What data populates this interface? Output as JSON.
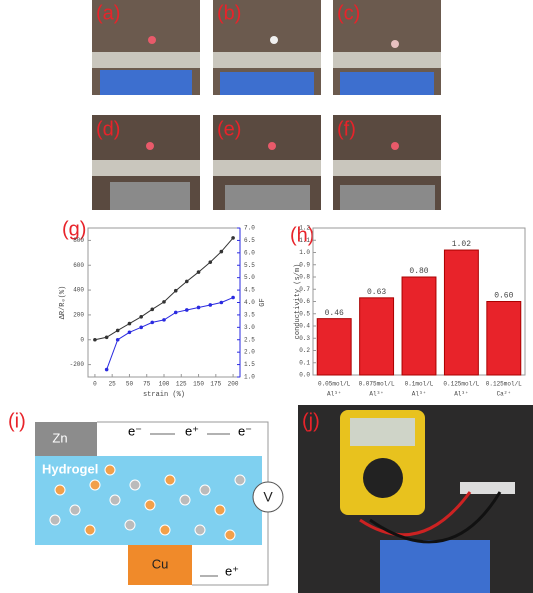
{
  "panels": {
    "labels": [
      "(a)",
      "(b)",
      "(c)",
      "(d)",
      "(e)",
      "(f)",
      "(g)",
      "(h)",
      "(i)",
      "(j)"
    ]
  },
  "chart_data": [
    {
      "type": "line",
      "x_label": "strain (%)",
      "y_label": "ΔR/R₀(%)",
      "y2_label": "GF",
      "x": [
        0,
        17,
        33,
        50,
        67,
        83,
        100,
        117,
        133,
        150,
        167,
        183,
        200
      ],
      "series": [
        {
          "color": "#333333",
          "values": [
            0,
            20,
            75,
            130,
            185,
            245,
            305,
            395,
            470,
            545,
            625,
            710,
            820
          ]
        },
        {
          "color": "#2a2ae0",
          "axis": "y2",
          "values": [
            null,
            1.3,
            2.5,
            2.8,
            3.0,
            3.2,
            3.3,
            3.6,
            3.7,
            3.8,
            3.9,
            4.0,
            4.2
          ]
        }
      ],
      "xlim": [
        -10,
        210
      ],
      "xticks": [
        0,
        25,
        50,
        75,
        100,
        125,
        150,
        175,
        200
      ],
      "ylim": [
        -300,
        900
      ],
      "yticks": [
        -200,
        0,
        200,
        400,
        600,
        800
      ],
      "y2lim": [
        1.0,
        7.0
      ],
      "y2ticks": [
        {
          "value": 1.0,
          "label": "1.0"
        },
        1.5,
        {
          "value": 2.0,
          "label": "2.0"
        },
        2.5,
        {
          "value": 3.0,
          "label": "3.0"
        },
        3.5,
        {
          "value": 4.0,
          "label": "4.0"
        },
        4.5,
        {
          "value": 5.0,
          "label": "5.0"
        },
        5.5,
        {
          "value": 6.0,
          "label": "6.0"
        },
        6.5,
        {
          "value": 7.0,
          "label": "7.0"
        }
      ]
    },
    {
      "type": "bar",
      "y_label": "conductivity (s/m)",
      "categories": [
        [
          "0.05mol/L",
          "Al³⁺"
        ],
        [
          "0.075mol/L",
          "Al³⁺"
        ],
        [
          "0.1mol/L",
          "Al³⁺"
        ],
        [
          "0.125mol/L",
          "Al³⁺"
        ],
        [
          "0.125mol/L",
          "Ca²⁺"
        ]
      ],
      "values": [
        0.46,
        0.63,
        0.8,
        1.02,
        0.6
      ],
      "value_labels": [
        "0.46",
        "0.63",
        "0.80",
        "1.02",
        "0.60"
      ],
      "color": "#e8232a",
      "ylim": [
        0,
        1.2
      ],
      "yticks": [
        {
          "value": 0,
          "label": "0.0"
        },
        0.1,
        0.2,
        0.3,
        0.4,
        0.5,
        0.6,
        0.7,
        0.8,
        0.9,
        {
          "value": 1.0,
          "label": "1.0"
        },
        1.1,
        1.2
      ]
    }
  ],
  "diagram": {
    "electrode_top": "Zn",
    "electrolyte": "Hydrogel",
    "electrode_bottom": "Cu",
    "meter": "V",
    "carriers": [
      "e⁻",
      "e⁺",
      "e⁻",
      "e⁺"
    ]
  }
}
